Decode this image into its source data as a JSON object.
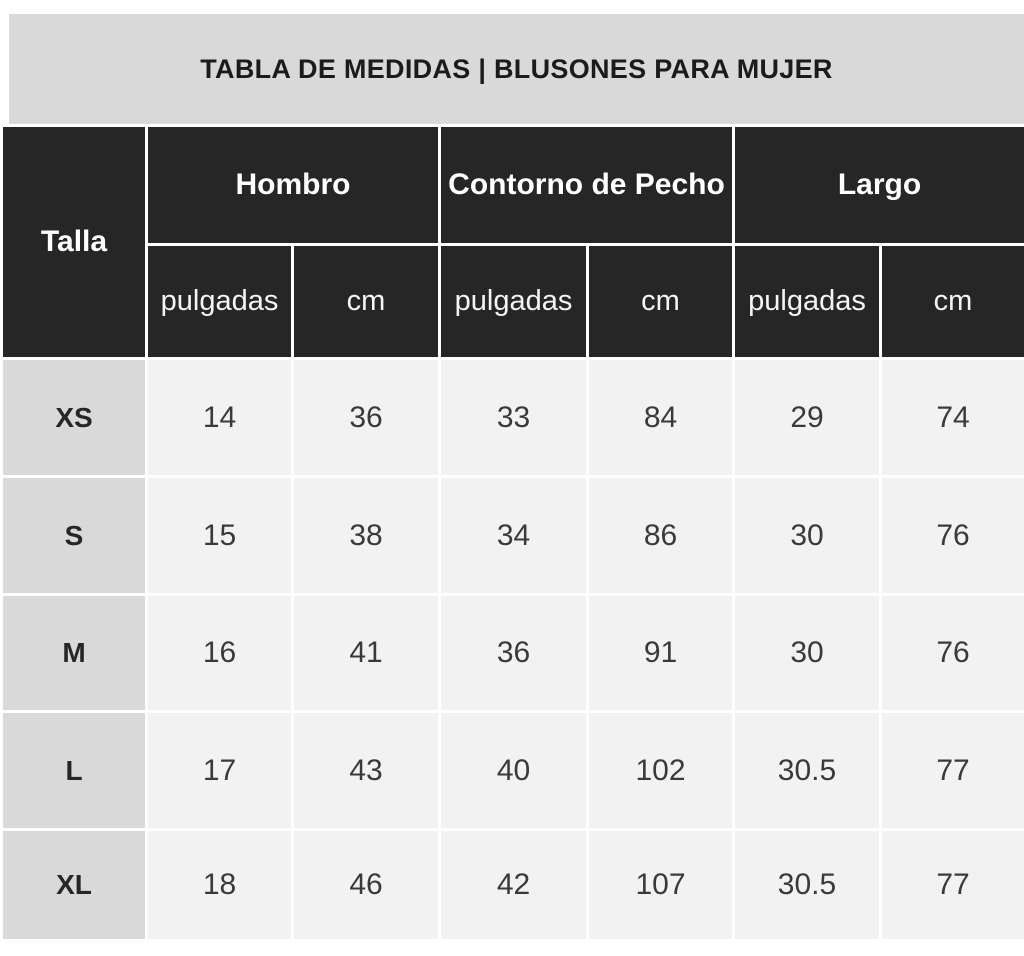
{
  "title": "TABLA DE MEDIDAS | BLUSONES PARA MUJER",
  "table": {
    "corner_label": "Talla",
    "groups": [
      {
        "label": "Hombro"
      },
      {
        "label": "Contorno de Pecho"
      },
      {
        "label": "Largo"
      }
    ],
    "unit_labels": [
      "pulgadas",
      "cm",
      "pulgadas",
      "cm",
      "pulgadas",
      "cm"
    ],
    "rows": [
      {
        "size": "XS",
        "values": [
          "14",
          "36",
          "33",
          "84",
          "29",
          "74"
        ]
      },
      {
        "size": "S",
        "values": [
          "15",
          "38",
          "34",
          "86",
          "30",
          "76"
        ]
      },
      {
        "size": "M",
        "values": [
          "16",
          "41",
          "36",
          "91",
          "30",
          "76"
        ]
      },
      {
        "size": "L",
        "values": [
          "17",
          "43",
          "40",
          "102",
          "30.5",
          "77"
        ]
      },
      {
        "size": "XL",
        "values": [
          "18",
          "46",
          "42",
          "107",
          "30.5",
          "77"
        ]
      }
    ]
  },
  "colors": {
    "title_band_bg": "#d9d9d9",
    "header_bg": "#262626",
    "header_text": "#ffffff",
    "size_cell_bg": "#d9d9d9",
    "data_cell_bg": "#f2f2f2",
    "data_text": "#3a3a3a",
    "title_text": "#1b1b1b",
    "grid_gap": "#ffffff"
  },
  "chart_data": {
    "type": "table",
    "title": "TABLA DE MEDIDAS | BLUSONES PARA MUJER",
    "column_groups": [
      "Talla",
      "Hombro",
      "Contorno de Pecho",
      "Largo"
    ],
    "columns": [
      "Talla",
      "Hombro pulgadas",
      "Hombro cm",
      "Contorno de Pecho pulgadas",
      "Contorno de Pecho cm",
      "Largo pulgadas",
      "Largo cm"
    ],
    "rows": [
      [
        "XS",
        14,
        36,
        33,
        84,
        29,
        74
      ],
      [
        "S",
        15,
        38,
        34,
        86,
        30,
        76
      ],
      [
        "M",
        16,
        41,
        36,
        91,
        30,
        76
      ],
      [
        "L",
        17,
        43,
        40,
        102,
        30.5,
        77
      ],
      [
        "XL",
        18,
        46,
        42,
        107,
        30.5,
        77
      ]
    ]
  }
}
